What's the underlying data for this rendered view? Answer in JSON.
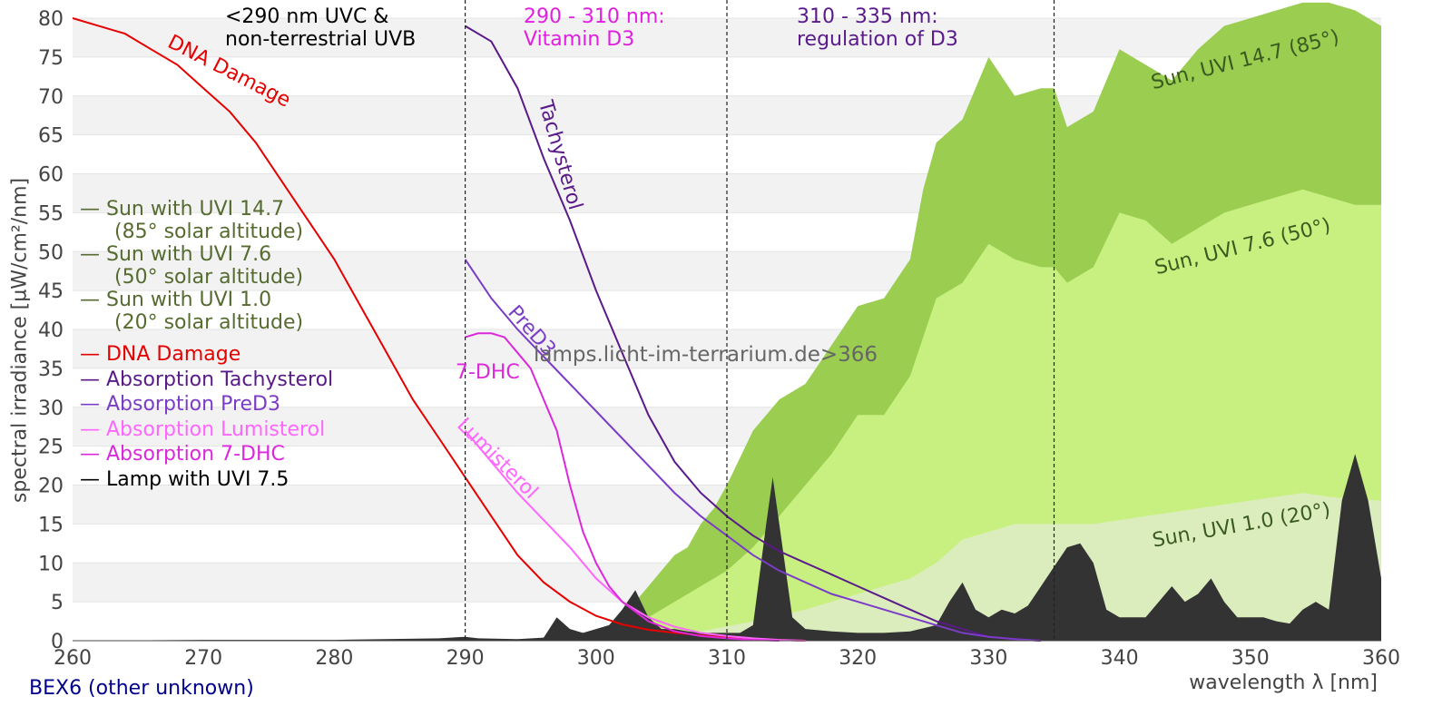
{
  "chart_data": {
    "type": "area",
    "title": "",
    "xlabel": "wavelength λ [nm]",
    "ylabel": "spectral irradiance [µW/cm²/nm]",
    "xlim": [
      260,
      360
    ],
    "ylim": [
      0,
      80
    ],
    "x_ticks": [
      260,
      270,
      280,
      290,
      300,
      310,
      320,
      330,
      340,
      350,
      360
    ],
    "y_ticks": [
      0,
      5,
      10,
      15,
      20,
      25,
      30,
      35,
      40,
      45,
      50,
      55,
      60,
      65,
      70,
      75,
      80
    ],
    "vlines": [
      290,
      310,
      335
    ],
    "regions": [
      {
        "text": "<290 nm UVC &\nnon-terrestrial UVB",
        "color": "#000000"
      },
      {
        "text": "290 - 310 nm:\nVitamin D3",
        "color": "#e020e0"
      },
      {
        "text": "310 - 335 nm:\nregulation of D3",
        "color": "#5a1a8a"
      }
    ],
    "series": [
      {
        "name": "Sun with UVI 14.7 (85° solar altitude)",
        "kind": "area",
        "color": "#9acd50",
        "points": [
          [
            298,
            0
          ],
          [
            300,
            1
          ],
          [
            302,
            3
          ],
          [
            303,
            5
          ],
          [
            304,
            7
          ],
          [
            305,
            9
          ],
          [
            306,
            11
          ],
          [
            307,
            12
          ],
          [
            308,
            15
          ],
          [
            309,
            17
          ],
          [
            310,
            20
          ],
          [
            312,
            27
          ],
          [
            314,
            31
          ],
          [
            316,
            33
          ],
          [
            318,
            38
          ],
          [
            320,
            43
          ],
          [
            322,
            44
          ],
          [
            324,
            49
          ],
          [
            325,
            58
          ],
          [
            326,
            64
          ],
          [
            328,
            67
          ],
          [
            330,
            75
          ],
          [
            332,
            70
          ],
          [
            334,
            71
          ],
          [
            335,
            71
          ],
          [
            336,
            66
          ],
          [
            338,
            68
          ],
          [
            340,
            76
          ],
          [
            342,
            74
          ],
          [
            344,
            72
          ],
          [
            346,
            76
          ],
          [
            348,
            79
          ],
          [
            350,
            80
          ],
          [
            352,
            81
          ],
          [
            354,
            82
          ],
          [
            356,
            82
          ],
          [
            358,
            81
          ],
          [
            360,
            79
          ]
        ]
      },
      {
        "name": "Sun with UVI 7.6 (50° solar altitude)",
        "kind": "area",
        "color": "#c8f080",
        "points": [
          [
            298,
            0
          ],
          [
            300,
            0.5
          ],
          [
            302,
            1.5
          ],
          [
            304,
            3
          ],
          [
            305,
            4
          ],
          [
            306,
            5
          ],
          [
            308,
            7
          ],
          [
            310,
            9
          ],
          [
            312,
            12
          ],
          [
            314,
            16
          ],
          [
            316,
            20
          ],
          [
            318,
            24
          ],
          [
            320,
            29
          ],
          [
            322,
            29
          ],
          [
            324,
            34
          ],
          [
            326,
            44
          ],
          [
            328,
            46
          ],
          [
            330,
            51
          ],
          [
            332,
            49
          ],
          [
            334,
            48
          ],
          [
            335,
            48
          ],
          [
            336,
            46
          ],
          [
            338,
            48
          ],
          [
            340,
            55
          ],
          [
            342,
            54
          ],
          [
            344,
            51
          ],
          [
            346,
            53
          ],
          [
            348,
            55
          ],
          [
            350,
            56
          ],
          [
            352,
            57
          ],
          [
            354,
            58
          ],
          [
            356,
            57
          ],
          [
            358,
            56
          ],
          [
            360,
            56
          ]
        ]
      },
      {
        "name": "Sun with UVI 1.0 (20° solar altitude)",
        "kind": "area",
        "color": "#dcedbd",
        "points": [
          [
            300,
            0
          ],
          [
            304,
            0.5
          ],
          [
            308,
            1.2
          ],
          [
            312,
            2.5
          ],
          [
            316,
            4
          ],
          [
            320,
            6
          ],
          [
            324,
            8
          ],
          [
            326,
            10
          ],
          [
            328,
            13
          ],
          [
            330,
            14
          ],
          [
            332,
            15
          ],
          [
            334,
            15
          ],
          [
            336,
            15
          ],
          [
            338,
            15
          ],
          [
            340,
            15.5
          ],
          [
            342,
            16
          ],
          [
            344,
            16.5
          ],
          [
            346,
            17
          ],
          [
            348,
            17.5
          ],
          [
            350,
            18
          ],
          [
            352,
            18.5
          ],
          [
            354,
            19
          ],
          [
            356,
            18.5
          ],
          [
            358,
            18.2
          ],
          [
            360,
            18
          ]
        ]
      },
      {
        "name": "Lamp with UVI 7.5",
        "kind": "area",
        "color": "#333333",
        "points": [
          [
            260,
            0
          ],
          [
            270,
            0.1
          ],
          [
            280,
            0.1
          ],
          [
            288,
            0.3
          ],
          [
            290,
            0.5
          ],
          [
            291,
            0.3
          ],
          [
            294,
            0.2
          ],
          [
            296,
            0.4
          ],
          [
            297,
            3
          ],
          [
            298,
            1.5
          ],
          [
            299,
            1
          ],
          [
            300,
            1.5
          ],
          [
            301,
            2
          ],
          [
            302,
            4
          ],
          [
            303,
            6.5
          ],
          [
            304,
            3
          ],
          [
            305,
            1.5
          ],
          [
            306,
            1.5
          ],
          [
            307,
            1.2
          ],
          [
            308,
            1
          ],
          [
            310,
            1
          ],
          [
            311,
            1
          ],
          [
            312,
            2
          ],
          [
            313,
            15
          ],
          [
            313.5,
            21
          ],
          [
            314,
            15
          ],
          [
            315,
            3
          ],
          [
            316,
            1.5
          ],
          [
            318,
            1.2
          ],
          [
            320,
            1
          ],
          [
            322,
            1
          ],
          [
            324,
            1.2
          ],
          [
            326,
            2
          ],
          [
            327,
            5
          ],
          [
            328,
            7.5
          ],
          [
            329,
            4
          ],
          [
            330,
            3
          ],
          [
            331,
            4
          ],
          [
            332,
            3.5
          ],
          [
            333,
            4.5
          ],
          [
            334,
            7
          ],
          [
            335,
            9.5
          ],
          [
            336,
            12
          ],
          [
            337,
            12.5
          ],
          [
            338,
            10
          ],
          [
            339,
            4
          ],
          [
            340,
            3
          ],
          [
            341,
            3
          ],
          [
            342,
            3
          ],
          [
            343,
            5
          ],
          [
            344,
            7
          ],
          [
            345,
            5
          ],
          [
            346,
            6
          ],
          [
            347,
            8
          ],
          [
            348,
            5
          ],
          [
            349,
            3
          ],
          [
            350,
            3
          ],
          [
            351,
            3
          ],
          [
            352,
            2.5
          ],
          [
            353,
            2.2
          ],
          [
            354,
            4
          ],
          [
            355,
            5
          ],
          [
            356,
            4
          ],
          [
            357,
            18
          ],
          [
            358,
            24
          ],
          [
            359,
            18
          ],
          [
            360,
            8
          ]
        ]
      },
      {
        "name": "DNA Damage",
        "kind": "line",
        "color": "#e60000",
        "points": [
          [
            260,
            80
          ],
          [
            262,
            79
          ],
          [
            264,
            78
          ],
          [
            266,
            76
          ],
          [
            268,
            74
          ],
          [
            270,
            71
          ],
          [
            272,
            68
          ],
          [
            274,
            64
          ],
          [
            276,
            59
          ],
          [
            278,
            54
          ],
          [
            280,
            49
          ],
          [
            282,
            43
          ],
          [
            284,
            37
          ],
          [
            286,
            31
          ],
          [
            288,
            26
          ],
          [
            290,
            21
          ],
          [
            292,
            16
          ],
          [
            294,
            11
          ],
          [
            296,
            7.5
          ],
          [
            298,
            5
          ],
          [
            300,
            3.2
          ],
          [
            302,
            2.1
          ],
          [
            304,
            1.4
          ],
          [
            306,
            1
          ],
          [
            308,
            0.7
          ],
          [
            310,
            0.4
          ],
          [
            312,
            0.2
          ],
          [
            314,
            0.1
          ],
          [
            316,
            0
          ]
        ]
      },
      {
        "name": "Absorption Tachysterol",
        "kind": "line",
        "color": "#5a1a8a",
        "points": [
          [
            290,
            79
          ],
          [
            292,
            77
          ],
          [
            294,
            71
          ],
          [
            296,
            62
          ],
          [
            298,
            54
          ],
          [
            300,
            45
          ],
          [
            302,
            37
          ],
          [
            304,
            29
          ],
          [
            306,
            23
          ],
          [
            308,
            19
          ],
          [
            310,
            16
          ],
          [
            312,
            13.5
          ],
          [
            314,
            11.5
          ],
          [
            316,
            10
          ],
          [
            318,
            8.5
          ],
          [
            320,
            7
          ],
          [
            322,
            5.5
          ],
          [
            324,
            4
          ],
          [
            326,
            2.5
          ],
          [
            328,
            1.5
          ],
          [
            330,
            0.5
          ],
          [
            332,
            0.2
          ],
          [
            334,
            0
          ]
        ]
      },
      {
        "name": "Absorption PreD3",
        "kind": "line",
        "color": "#7b3cc8",
        "points": [
          [
            290,
            49
          ],
          [
            292,
            44
          ],
          [
            294,
            40
          ],
          [
            296,
            36.5
          ],
          [
            298,
            33
          ],
          [
            300,
            29.5
          ],
          [
            302,
            26
          ],
          [
            304,
            22.5
          ],
          [
            306,
            19
          ],
          [
            308,
            16
          ],
          [
            310,
            13.5
          ],
          [
            312,
            11
          ],
          [
            314,
            9
          ],
          [
            316,
            7.5
          ],
          [
            318,
            6
          ],
          [
            320,
            5
          ],
          [
            322,
            4
          ],
          [
            324,
            3
          ],
          [
            326,
            2
          ],
          [
            328,
            1
          ],
          [
            330,
            0.5
          ],
          [
            332,
            0.2
          ],
          [
            334,
            0
          ]
        ]
      },
      {
        "name": "Absorption Lumisterol",
        "kind": "line",
        "color": "#ff66ff",
        "points": [
          [
            290,
            27
          ],
          [
            292,
            23
          ],
          [
            294,
            19
          ],
          [
            296,
            15.5
          ],
          [
            298,
            12
          ],
          [
            300,
            8
          ],
          [
            302,
            5
          ],
          [
            304,
            3
          ],
          [
            306,
            1.8
          ],
          [
            308,
            1
          ],
          [
            310,
            0.6
          ],
          [
            312,
            0.3
          ],
          [
            314,
            0.1
          ],
          [
            316,
            0
          ]
        ]
      },
      {
        "name": "Absorption 7-DHC",
        "kind": "line",
        "color": "#dc28dc",
        "points": [
          [
            290,
            39
          ],
          [
            291,
            39.5
          ],
          [
            292,
            39.5
          ],
          [
            293,
            39
          ],
          [
            294,
            37
          ],
          [
            295,
            35
          ],
          [
            296,
            31
          ],
          [
            297,
            27
          ],
          [
            298,
            20
          ],
          [
            299,
            14
          ],
          [
            300,
            10
          ],
          [
            301,
            7
          ],
          [
            302,
            5
          ],
          [
            304,
            2.5
          ],
          [
            306,
            1.2
          ],
          [
            308,
            0.6
          ],
          [
            310,
            0.3
          ],
          [
            312,
            0.1
          ],
          [
            314,
            0
          ]
        ]
      }
    ],
    "curve_labels": [
      {
        "text": "DNA Damage",
        "color": "#e60000"
      },
      {
        "text": "Tachysterol",
        "color": "#5a1a8a"
      },
      {
        "text": "PreD3",
        "color": "#7b3cc8"
      },
      {
        "text": "7-DHC",
        "color": "#dc28dc"
      },
      {
        "text": "Lumisterol",
        "color": "#ff66ff"
      },
      {
        "text": "Sun, UVI 14.7 (85°)",
        "color": "#3a5a20"
      },
      {
        "text": "Sun, UVI 7.6 (50°)",
        "color": "#3a5a20"
      },
      {
        "text": "Sun, UVI 1.0 (20°)",
        "color": "#3a5a20"
      }
    ],
    "legend": [
      {
        "line1": "— Sun with UVI 14.7",
        "line2": "(85° solar altitude)",
        "color": "#556b2f"
      },
      {
        "line1": "— Sun with UVI 7.6",
        "line2": "(50° solar altitude)",
        "color": "#556b2f"
      },
      {
        "line1": "— Sun with UVI 1.0",
        "line2": "(20° solar altitude)",
        "color": "#556b2f"
      },
      {
        "line1": "— DNA Damage",
        "color": "#e60000"
      },
      {
        "line1": "— Absorption Tachysterol",
        "color": "#5a1a8a"
      },
      {
        "line1": "— Absorption PreD3",
        "color": "#7b3cc8"
      },
      {
        "line1": "— Absorption Lumisterol",
        "color": "#ff66ff"
      },
      {
        "line1": "— Absorption 7-DHC",
        "color": "#dc28dc"
      },
      {
        "line1": "— Lamp with UVI 7.5",
        "color": "#000000"
      }
    ],
    "watermark": "lamps.licht-im-terrarium.de>366",
    "footer": "BEX6 (other unknown)"
  }
}
